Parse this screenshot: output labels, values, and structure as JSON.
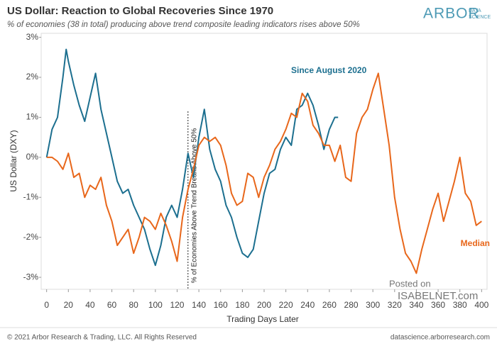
{
  "chart_data": {
    "type": "line",
    "title": "US Dollar: Reaction to Global Recoveries Since 1970",
    "subtitle": "% of economies (38 in total) producing above trend composite leading indicators rises above 50%",
    "x_label": "Trading Days Later",
    "y_label": "US Dollar (DXY)",
    "xlim": [
      -5,
      405
    ],
    "xticks": [
      0,
      20,
      40,
      60,
      80,
      100,
      120,
      140,
      160,
      180,
      200,
      220,
      240,
      260,
      280,
      300,
      320,
      340,
      360,
      380,
      400
    ],
    "ylim": [
      -3.3,
      3.1
    ],
    "yticks": [
      {
        "value": -3,
        "label": "-3%"
      },
      {
        "value": -2,
        "label": "-2%"
      },
      {
        "value": -1,
        "label": "-1%"
      },
      {
        "value": 0,
        "label": "0%"
      },
      {
        "value": 1,
        "label": "1%"
      },
      {
        "value": 2,
        "label": "2%"
      },
      {
        "value": 3,
        "label": "3%"
      }
    ],
    "grid": false,
    "annotations": [
      {
        "x": 130,
        "text": "% of Economies Above Trend Breaks Above 50%"
      }
    ],
    "series": [
      {
        "name": "Since August 2020",
        "color": "#1c6f8f",
        "x": [
          0,
          5,
          10,
          15,
          18,
          20,
          25,
          30,
          35,
          40,
          45,
          50,
          55,
          60,
          65,
          70,
          75,
          80,
          85,
          90,
          95,
          100,
          105,
          110,
          115,
          120,
          125,
          130,
          135,
          140,
          145,
          150,
          155,
          160,
          165,
          170,
          175,
          180,
          185,
          190,
          195,
          200,
          205,
          210,
          215,
          220,
          225,
          230,
          235,
          240,
          245,
          250,
          255,
          260,
          265,
          268
        ],
        "values": [
          0,
          0.7,
          1.0,
          2.0,
          2.7,
          2.4,
          1.8,
          1.3,
          0.9,
          1.5,
          2.1,
          1.2,
          0.6,
          0.0,
          -0.6,
          -0.9,
          -0.8,
          -1.2,
          -1.5,
          -1.8,
          -2.3,
          -2.7,
          -2.2,
          -1.5,
          -1.2,
          -1.5,
          -0.8,
          0.1,
          -0.5,
          0.5,
          1.2,
          0.2,
          -0.3,
          -0.6,
          -1.2,
          -1.5,
          -2.0,
          -2.4,
          -2.5,
          -2.3,
          -1.6,
          -0.9,
          -0.4,
          -0.3,
          0.2,
          0.5,
          0.3,
          1.2,
          1.3,
          1.6,
          1.3,
          0.8,
          0.2,
          0.7,
          1.0,
          1.0
        ]
      },
      {
        "name": "Median",
        "color": "#e8671b",
        "x": [
          0,
          5,
          10,
          15,
          20,
          25,
          30,
          35,
          40,
          45,
          50,
          55,
          60,
          65,
          70,
          75,
          80,
          85,
          90,
          95,
          100,
          105,
          110,
          115,
          120,
          125,
          130,
          135,
          140,
          145,
          150,
          155,
          160,
          165,
          170,
          175,
          180,
          185,
          190,
          195,
          200,
          205,
          210,
          215,
          220,
          225,
          230,
          235,
          240,
          245,
          250,
          255,
          260,
          265,
          270,
          275,
          280,
          285,
          290,
          295,
          300,
          305,
          310,
          315,
          320,
          325,
          330,
          335,
          340,
          345,
          350,
          355,
          360,
          365,
          370,
          375,
          380,
          385,
          390,
          395,
          400
        ],
        "values": [
          0,
          0.0,
          -0.1,
          -0.3,
          0.1,
          -0.5,
          -0.4,
          -1.0,
          -0.7,
          -0.8,
          -0.5,
          -1.2,
          -1.6,
          -2.2,
          -2.0,
          -1.8,
          -2.4,
          -2.0,
          -1.5,
          -1.6,
          -1.8,
          -1.4,
          -1.7,
          -2.1,
          -2.6,
          -1.5,
          -0.8,
          -0.3,
          0.3,
          0.5,
          0.4,
          0.5,
          0.3,
          -0.2,
          -0.9,
          -1.2,
          -1.1,
          -0.4,
          -0.5,
          -1.0,
          -0.5,
          -0.2,
          0.2,
          0.4,
          0.7,
          1.1,
          1.0,
          1.6,
          1.4,
          0.8,
          0.6,
          0.3,
          0.3,
          -0.1,
          0.3,
          -0.5,
          -0.6,
          0.6,
          1.0,
          1.2,
          1.7,
          2.1,
          1.2,
          0.3,
          -1.0,
          -1.8,
          -2.4,
          -2.6,
          -2.9,
          -2.3,
          -1.8,
          -1.3,
          -0.9,
          -1.6,
          -1.1,
          -0.6,
          0.0,
          -0.9,
          -1.1,
          -1.7,
          -1.6
        ]
      }
    ],
    "logo": {
      "main": "ARBOR",
      "top": "DATA",
      "bottom": "SCIENCE"
    },
    "watermark": {
      "top": "Posted on",
      "bottom": "ISABELNET.com"
    },
    "copyright": "© 2021 Arbor Research & Trading, LLC. All Rights Reserved",
    "website": "datascience.arborresearch.com"
  }
}
